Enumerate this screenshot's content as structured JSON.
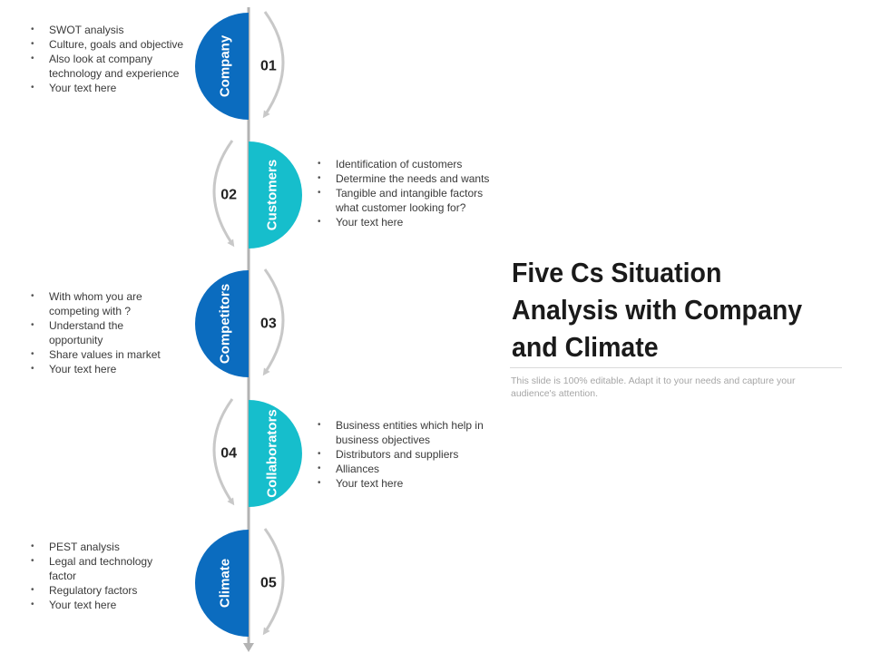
{
  "title": "Five Cs Situation Analysis with Company and Climate",
  "subtitle": "This slide is 100% editable. Adapt it to your needs and capture your audience's attention.",
  "colors": {
    "dark_blue": "#0B6CBF",
    "teal": "#16BECC",
    "line": "#b3b3b3",
    "arrow": "#c8c8c8",
    "number": "#222222"
  },
  "stages": [
    {
      "number": "01",
      "label": "Company",
      "side": "left",
      "bullets": [
        "SWOT analysis",
        "Culture, goals and objective",
        "Also look at company technology and experience",
        "Your text here"
      ]
    },
    {
      "number": "02",
      "label": "Customers",
      "side": "right",
      "bullets": [
        "Identification of customers",
        "Determine the needs and wants",
        "Tangible and intangible factors what customer looking for?",
        "Your text here"
      ]
    },
    {
      "number": "03",
      "label": "Competitors",
      "side": "left",
      "bullets": [
        "With whom you are competing with ?",
        "Understand the opportunity",
        "Share values in market",
        "Your text here"
      ]
    },
    {
      "number": "04",
      "label": "Collaborators",
      "side": "right",
      "bullets": [
        "Business entities which help in business objectives",
        "Distributors and suppliers",
        "Alliances",
        "Your text here"
      ]
    },
    {
      "number": "05",
      "label": "Climate",
      "side": "left",
      "bullets": [
        "PEST analysis",
        "Legal and technology factor",
        "Regulatory factors",
        "Your text here"
      ]
    }
  ]
}
